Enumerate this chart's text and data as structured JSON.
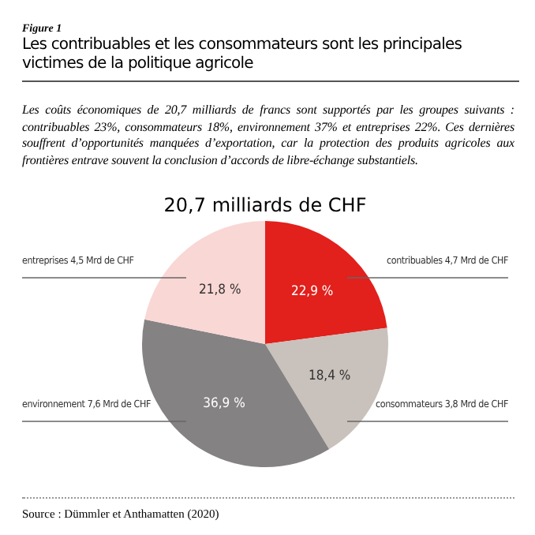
{
  "chart_data": {
    "type": "pie",
    "title": "20,7 milliards de CHF",
    "subtitle": "Les contribuables et les consommateurs sont les principales victimes de la politique agricole",
    "categories": [
      "contribuables 4,7 Mrd de CHF",
      "consommateurs 3,8 Mrd de CHF",
      "environnement 7,6 Mrd de CHF",
      "entreprises 4,5 Mrd de CHF"
    ],
    "values": [
      22.9,
      18.4,
      36.9,
      21.8
    ],
    "value_labels": [
      "22,9 %",
      "18,4 %",
      "36,9 %",
      "21,8 %"
    ],
    "colors": [
      "#e2201c",
      "#c9c1bb",
      "#858283",
      "#f8d7d4"
    ],
    "annotations": [
      "Figure 1",
      "Les coûts économiques de 20,7 milliards de francs sont supportés par les groupes suivants : contribuables 23%, consommateurs 18%, environnement 37% et entreprises 22%. Ces dernières souffrent d’opportunités manquées d’exportation, car la protection des produits agricoles aux frontières entrave souvent la conclusion d’accords de libre-échange substantiels.",
      "Source : Dümmler et Anthamatten (2020)"
    ]
  }
}
